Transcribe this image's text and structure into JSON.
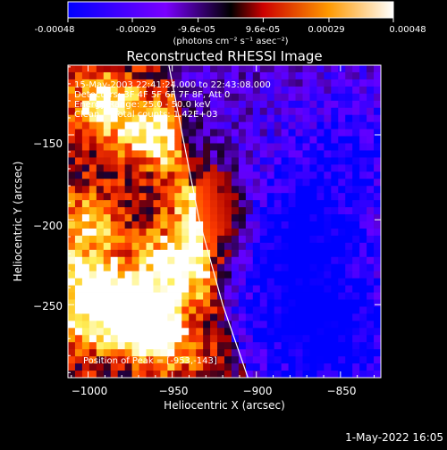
{
  "colorbar": {
    "tick_labels": [
      "-0.00048",
      "-0.00029",
      "-9.6e-05",
      "9.6e-05",
      "0.00029",
      "0.00048"
    ],
    "tick_values": [
      -0.00048,
      -0.00029,
      -9.6e-05,
      9.6e-05,
      0.00029,
      0.00048
    ],
    "range": [
      -0.00048,
      0.00048
    ],
    "unit_label": "(photons cm⁻² s⁻¹ asec⁻²)"
  },
  "chart_data": {
    "type": "heatmap",
    "title": "Reconstructed RHESSI Image",
    "xlabel": "Heliocentric X (arcsec)",
    "ylabel": "Heliocentric Y (arcsec)",
    "xlim": [
      -1012,
      -826
    ],
    "ylim": [
      -293,
      -109
    ],
    "xticks": [
      -1000,
      -950,
      -900,
      -850
    ],
    "yticks": [
      -150,
      -200,
      -250
    ],
    "xtick_labels": [
      "−1000",
      "−950",
      "−900",
      "−850"
    ],
    "ytick_labels": [
      "−150",
      "−200",
      "−250"
    ],
    "colormap": [
      "#0000ff",
      "#7a00ff",
      "#000000",
      "#ff0000",
      "#ffcc00",
      "#ffffff"
    ],
    "annotations": [
      "15-May-2003 22:41:24.000 to 22:43:08.000",
      "Detectors: 3F 4F 5F 6F 7F 8F, Att 0",
      "Energy Range: 25.0 - 50.0 keV",
      "Clean     Total counts: 1.42E+03"
    ],
    "peak_label": "Position of Peak = [-953,-143]",
    "limb_points": [
      [
        -952,
        -109
      ],
      [
        -944,
        -150
      ],
      [
        -934,
        -200
      ],
      [
        -920,
        -250
      ],
      [
        -905,
        -293
      ]
    ],
    "bright_sources": [
      {
        "x": -990,
        "y": -132,
        "value": 0.00045
      },
      {
        "x": -960,
        "y": -150,
        "value": 0.00048
      },
      {
        "x": -930,
        "y": -185,
        "value": 0.00043
      },
      {
        "x": -925,
        "y": -205,
        "value": 0.00036
      },
      {
        "x": -1000,
        "y": -200,
        "value": 0.00033
      },
      {
        "x": -955,
        "y": -225,
        "value": 0.00034
      },
      {
        "x": -1000,
        "y": -235,
        "value": 0.00042
      },
      {
        "x": -935,
        "y": -230,
        "value": 0.00036
      },
      {
        "x": -975,
        "y": -252,
        "value": 0.00035
      },
      {
        "x": -965,
        "y": -262,
        "value": 0.00044
      },
      {
        "x": -1000,
        "y": -260,
        "value": 0.00031
      },
      {
        "x": -945,
        "y": -275,
        "value": 0.00026
      }
    ],
    "dark_sources": [
      {
        "x": -880,
        "y": -215,
        "value": -0.0003
      },
      {
        "x": -860,
        "y": -270,
        "value": -0.00035
      },
      {
        "x": -845,
        "y": -160,
        "value": -0.00022
      }
    ]
  },
  "footer": {
    "timestamp": "1-May-2022 16:05"
  }
}
